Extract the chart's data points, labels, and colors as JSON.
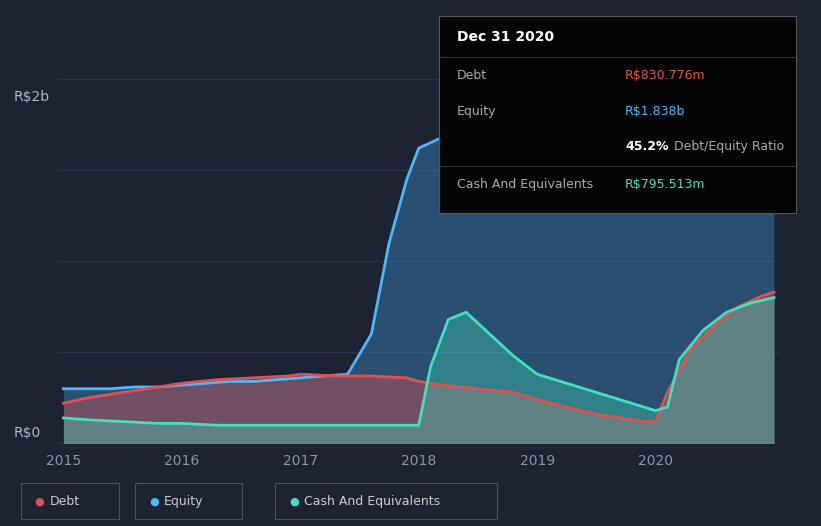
{
  "bg_color": "#1c2333",
  "plot_bg_color": "#1c2333",
  "grid_color": "#2a3347",
  "ylabel_top": "R$2b",
  "ylabel_bottom": "R$0",
  "x_ticks": [
    2015,
    2016,
    2017,
    2018,
    2019,
    2020
  ],
  "title_box": {
    "date": "Dec 31 2020",
    "debt_label": "Debt",
    "debt_value": "R$830.776m",
    "debt_color": "#e05252",
    "equity_label": "Equity",
    "equity_value": "R$1.838b",
    "equity_color": "#4db8ff",
    "ratio_bold": "45.2%",
    "ratio_rest": " Debt/Equity Ratio",
    "cash_label": "Cash And Equivalents",
    "cash_value": "R$795.513m",
    "cash_color": "#40e0c0",
    "box_bg": "#050505",
    "label_color": "#aaaaaa",
    "title_color": "#ffffff",
    "ratio_color": "#ffffff"
  },
  "legend": [
    {
      "label": "Debt",
      "color": "#e05252"
    },
    {
      "label": "Equity",
      "color": "#4db8ff"
    },
    {
      "label": "Cash And Equivalents",
      "color": "#40e0c0"
    }
  ],
  "equity_x": [
    2015.0,
    2015.2,
    2015.4,
    2015.6,
    2015.8,
    2016.0,
    2016.2,
    2016.4,
    2016.6,
    2016.8,
    2017.0,
    2017.2,
    2017.4,
    2017.6,
    2017.75,
    2017.9,
    2018.0,
    2018.2,
    2018.5,
    2018.8,
    2019.0,
    2019.3,
    2019.6,
    2019.9,
    2020.0,
    2020.1,
    2020.2,
    2020.4,
    2020.6,
    2020.8,
    2021.0
  ],
  "equity_y": [
    0.3,
    0.3,
    0.3,
    0.31,
    0.31,
    0.32,
    0.33,
    0.34,
    0.34,
    0.35,
    0.36,
    0.37,
    0.38,
    0.6,
    1.1,
    1.45,
    1.62,
    1.68,
    1.72,
    1.75,
    1.76,
    1.78,
    1.79,
    1.8,
    1.81,
    1.76,
    1.62,
    1.55,
    1.68,
    1.8,
    1.84
  ],
  "debt_x": [
    2015.0,
    2015.2,
    2015.5,
    2015.8,
    2016.0,
    2016.3,
    2016.6,
    2016.9,
    2017.0,
    2017.3,
    2017.6,
    2017.9,
    2018.0,
    2018.2,
    2018.5,
    2018.8,
    2019.0,
    2019.3,
    2019.5,
    2019.7,
    2019.9,
    2020.0,
    2020.1,
    2020.3,
    2020.5,
    2020.7,
    2020.9,
    2021.0
  ],
  "debt_y": [
    0.22,
    0.25,
    0.28,
    0.31,
    0.33,
    0.35,
    0.36,
    0.37,
    0.38,
    0.37,
    0.37,
    0.36,
    0.34,
    0.32,
    0.3,
    0.28,
    0.24,
    0.19,
    0.16,
    0.14,
    0.12,
    0.12,
    0.28,
    0.52,
    0.65,
    0.75,
    0.81,
    0.83
  ],
  "cash_x": [
    2015.0,
    2015.2,
    2015.5,
    2015.8,
    2016.0,
    2016.3,
    2016.6,
    2016.9,
    2017.0,
    2017.3,
    2017.6,
    2017.9,
    2018.0,
    2018.1,
    2018.25,
    2018.4,
    2018.6,
    2018.8,
    2019.0,
    2019.3,
    2019.5,
    2019.7,
    2019.9,
    2020.0,
    2020.1,
    2020.2,
    2020.4,
    2020.6,
    2020.8,
    2021.0
  ],
  "cash_y": [
    0.14,
    0.13,
    0.12,
    0.11,
    0.11,
    0.1,
    0.1,
    0.1,
    0.1,
    0.1,
    0.1,
    0.1,
    0.1,
    0.42,
    0.68,
    0.72,
    0.6,
    0.48,
    0.38,
    0.32,
    0.28,
    0.24,
    0.2,
    0.18,
    0.2,
    0.46,
    0.62,
    0.72,
    0.77,
    0.8
  ]
}
